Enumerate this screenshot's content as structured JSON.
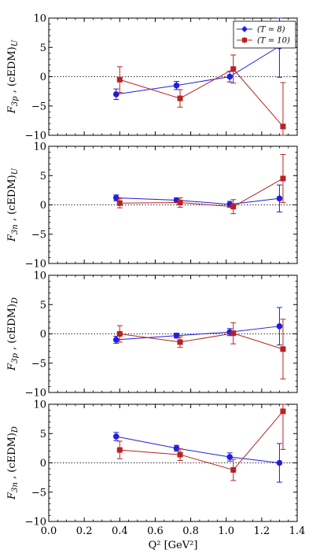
{
  "chart_data": [
    {
      "type": "scatter",
      "ylabel": "F_3p , (cEDM)_U",
      "ylim": [
        -10,
        10
      ],
      "yticks": [
        -10,
        -5,
        0,
        5,
        10
      ],
      "xlim": [
        0.0,
        1.4
      ],
      "legend": {
        "placement": "top-right"
      },
      "series": [
        {
          "name": "(T = 8)",
          "color": "#1f1fdd",
          "marker": "circle",
          "x": [
            0.38,
            0.72,
            1.02,
            1.3
          ],
          "y": [
            -3.0,
            -1.5,
            0.0,
            5.2
          ],
          "err": [
            0.9,
            0.7,
            0.9,
            5.3
          ]
        },
        {
          "name": "(T = 10)",
          "color": "#b82222",
          "marker": "square",
          "x": [
            0.4,
            0.74,
            1.04,
            1.32
          ],
          "y": [
            -0.5,
            -3.7,
            1.3,
            -8.5
          ],
          "err": [
            2.2,
            1.5,
            2.4,
            7.5
          ]
        }
      ]
    },
    {
      "type": "scatter",
      "ylabel": "F_3n , (cEDM)_U",
      "ylim": [
        -10,
        10
      ],
      "yticks": [
        -10,
        -5,
        0,
        5,
        10
      ],
      "xlim": [
        0.0,
        1.4
      ],
      "series": [
        {
          "name": "(T = 8)",
          "color": "#1f1fdd",
          "marker": "circle",
          "x": [
            0.38,
            0.72,
            1.02,
            1.3
          ],
          "y": [
            1.2,
            0.8,
            0.1,
            1.1
          ],
          "err": [
            0.5,
            0.4,
            0.5,
            2.3
          ]
        },
        {
          "name": "(T = 10)",
          "color": "#b82222",
          "marker": "square",
          "x": [
            0.4,
            0.74,
            1.04,
            1.32
          ],
          "y": [
            0.3,
            0.4,
            -0.3,
            4.5
          ],
          "err": [
            0.8,
            0.8,
            1.2,
            4.1
          ]
        }
      ]
    },
    {
      "type": "scatter",
      "ylabel": "F_3p , (cEDM)_D",
      "ylim": [
        -10,
        10
      ],
      "yticks": [
        -10,
        -5,
        0,
        5,
        10
      ],
      "xlim": [
        0.0,
        1.4
      ],
      "series": [
        {
          "name": "(T = 8)",
          "color": "#1f1fdd",
          "marker": "circle",
          "x": [
            0.38,
            0.72,
            1.02,
            1.3
          ],
          "y": [
            -1.0,
            -0.3,
            0.3,
            1.3
          ],
          "err": [
            0.6,
            0.4,
            0.6,
            3.2
          ]
        },
        {
          "name": "(T = 10)",
          "color": "#b82222",
          "marker": "square",
          "x": [
            0.4,
            0.74,
            1.04,
            1.32
          ],
          "y": [
            0.0,
            -1.4,
            0.1,
            -2.6
          ],
          "err": [
            1.4,
            0.9,
            1.8,
            5.1
          ]
        }
      ]
    },
    {
      "type": "scatter",
      "ylabel": "F_3n , (cEDM)_D",
      "xlabel": "Q² [GeV²]",
      "ylim": [
        -10,
        10
      ],
      "yticks": [
        -10,
        -5,
        0,
        5,
        10
      ],
      "xlim": [
        0.0,
        1.4
      ],
      "xticks": [
        0.0,
        0.2,
        0.4,
        0.6,
        0.8,
        1.0,
        1.2,
        1.4
      ],
      "series": [
        {
          "name": "(T = 8)",
          "color": "#1f1fdd",
          "marker": "circle",
          "x": [
            0.38,
            0.72,
            1.02,
            1.3
          ],
          "y": [
            4.5,
            2.5,
            1.0,
            0.0
          ],
          "err": [
            0.7,
            0.5,
            0.7,
            3.3
          ]
        },
        {
          "name": "(T = 10)",
          "color": "#b82222",
          "marker": "square",
          "x": [
            0.4,
            0.74,
            1.04,
            1.32
          ],
          "y": [
            2.2,
            1.4,
            -1.2,
            8.8
          ],
          "err": [
            1.5,
            1.0,
            1.8,
            6.5
          ]
        }
      ]
    }
  ]
}
